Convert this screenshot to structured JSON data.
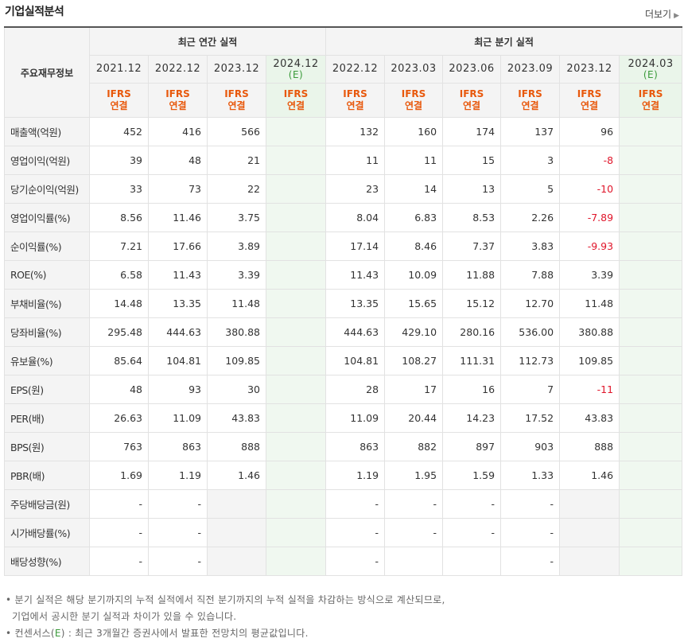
{
  "header": {
    "title": "기업실적분석",
    "more_label": "더보기",
    "more_icon": "arrow-right-icon"
  },
  "table": {
    "corner_label": "주요재무정보",
    "annual_group": "최근 연간 실적",
    "quarter_group": "최근 분기 실적",
    "periods": [
      {
        "label": "2021.12",
        "est": ""
      },
      {
        "label": "2022.12",
        "est": ""
      },
      {
        "label": "2023.12",
        "est": ""
      },
      {
        "label": "2024.12",
        "est": "(E)"
      },
      {
        "label": "2022.12",
        "est": ""
      },
      {
        "label": "2023.03",
        "est": ""
      },
      {
        "label": "2023.06",
        "est": ""
      },
      {
        "label": "2023.09",
        "est": ""
      },
      {
        "label": "2023.12",
        "est": ""
      },
      {
        "label": "2024.03",
        "est": "(E)"
      }
    ],
    "accounting": {
      "line1": "IFRS",
      "line2": "연결"
    },
    "rows": [
      {
        "label": "매출액(억원)",
        "values": [
          "452",
          "416",
          "566",
          "",
          "132",
          "160",
          "174",
          "137",
          "96",
          ""
        ]
      },
      {
        "label": "영업이익(억원)",
        "values": [
          "39",
          "48",
          "21",
          "",
          "11",
          "11",
          "15",
          "3",
          "-8",
          ""
        ]
      },
      {
        "label": "당기순이익(억원)",
        "values": [
          "33",
          "73",
          "22",
          "",
          "23",
          "14",
          "13",
          "5",
          "-10",
          ""
        ]
      },
      {
        "label": "영업이익률(%)",
        "values": [
          "8.56",
          "11.46",
          "3.75",
          "",
          "8.04",
          "6.83",
          "8.53",
          "2.26",
          "-7.89",
          ""
        ]
      },
      {
        "label": "순이익률(%)",
        "values": [
          "7.21",
          "17.66",
          "3.89",
          "",
          "17.14",
          "8.46",
          "7.37",
          "3.83",
          "-9.93",
          ""
        ]
      },
      {
        "label": "ROE(%)",
        "values": [
          "6.58",
          "11.43",
          "3.39",
          "",
          "11.43",
          "10.09",
          "11.88",
          "7.88",
          "3.39",
          ""
        ]
      },
      {
        "label": "부채비율(%)",
        "values": [
          "14.48",
          "13.35",
          "11.48",
          "",
          "13.35",
          "15.65",
          "15.12",
          "12.70",
          "11.48",
          ""
        ]
      },
      {
        "label": "당좌비율(%)",
        "values": [
          "295.48",
          "444.63",
          "380.88",
          "",
          "444.63",
          "429.10",
          "280.16",
          "536.00",
          "380.88",
          ""
        ]
      },
      {
        "label": "유보율(%)",
        "values": [
          "85.64",
          "104.81",
          "109.85",
          "",
          "104.81",
          "108.27",
          "111.31",
          "112.73",
          "109.85",
          ""
        ]
      },
      {
        "label": "EPS(원)",
        "values": [
          "48",
          "93",
          "30",
          "",
          "28",
          "17",
          "16",
          "7",
          "-11",
          ""
        ]
      },
      {
        "label": "PER(배)",
        "values": [
          "26.63",
          "11.09",
          "43.83",
          "",
          "11.09",
          "20.44",
          "14.23",
          "17.52",
          "43.83",
          ""
        ]
      },
      {
        "label": "BPS(원)",
        "values": [
          "763",
          "863",
          "888",
          "",
          "863",
          "882",
          "897",
          "903",
          "888",
          ""
        ]
      },
      {
        "label": "PBR(배)",
        "values": [
          "1.69",
          "1.19",
          "1.46",
          "",
          "1.19",
          "1.95",
          "1.59",
          "1.33",
          "1.46",
          ""
        ]
      },
      {
        "label": "주당배당금(원)",
        "values": [
          "-",
          "-",
          "",
          "",
          "-",
          "-",
          "-",
          "-",
          "",
          ""
        ]
      },
      {
        "label": "시가배당률(%)",
        "values": [
          "-",
          "-",
          "",
          "",
          "-",
          "-",
          "-",
          "-",
          "",
          ""
        ]
      },
      {
        "label": "배당성향(%)",
        "values": [
          "-",
          "-",
          "",
          "",
          "-",
          "",
          "",
          "-",
          "",
          ""
        ]
      }
    ],
    "grey_cells": {
      "13": [
        2,
        8
      ],
      "14": [
        2,
        8
      ],
      "15": [
        2,
        8
      ]
    }
  },
  "notes": {
    "line1": "분기 실적은 해당 분기까지의 누적 실적에서 직전 분기까지의 누적 실적을 차감하는 방식으로 계산되므로,",
    "line2": "기업에서 공시한 분기 실적과 차이가 있을 수 있습니다.",
    "line3_prefix": "컨센서스(",
    "line3_e": "E",
    "line3_suffix": ") : 최근 3개월간 증권사에서 발표한 전망치의 평균값입니다."
  },
  "colors": {
    "negative": "#e0162b",
    "estimate_bg": "#f0f8f0",
    "accounting_text": "#e8580c",
    "estimate_text": "#3a9a3a"
  }
}
